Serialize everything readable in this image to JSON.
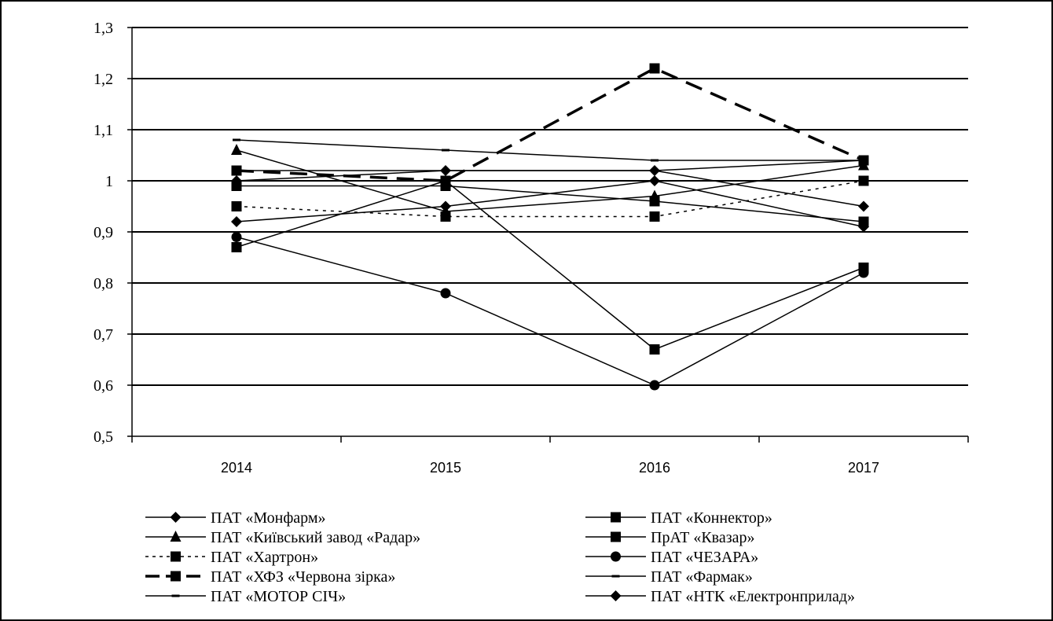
{
  "chart_data": {
    "type": "line",
    "categories": [
      "2014",
      "2015",
      "2016",
      "2017"
    ],
    "ylim": [
      0.5,
      1.3
    ],
    "yticks": [
      0.5,
      0.6,
      0.7,
      0.8,
      0.9,
      1.0,
      1.1,
      1.2,
      1.3
    ],
    "ytick_labels": [
      "0,5",
      "0,6",
      "0,7",
      "0,8",
      "0,9",
      "1",
      "1,1",
      "1,2",
      "1,3"
    ],
    "grid": true,
    "legend_position": "bottom",
    "series": [
      {
        "name": "ПАТ «Монфарм»",
        "values": [
          1.0,
          1.02,
          1.02,
          0.95
        ],
        "marker": "diamond",
        "dash": "solid",
        "width": 1.5
      },
      {
        "name": "ПАТ «Коннектор»",
        "values": [
          0.99,
          0.99,
          0.96,
          0.92
        ],
        "marker": "square",
        "dash": "solid",
        "width": 1.5
      },
      {
        "name": "ПАТ «Київський завод «Радар»",
        "values": [
          1.06,
          0.94,
          0.97,
          1.03
        ],
        "marker": "triangle",
        "dash": "solid",
        "width": 1.5
      },
      {
        "name": "ПрАТ «Квазар»",
        "values": [
          0.87,
          1.0,
          0.67,
          0.83
        ],
        "marker": "square",
        "dash": "solid",
        "width": 1.5
      },
      {
        "name": "ПАТ «Хартрон»",
        "values": [
          0.95,
          0.93,
          0.93,
          1.0
        ],
        "marker": "square",
        "dash": "dotted",
        "width": 1.5
      },
      {
        "name": "ПАТ «ЧЕЗАРА»",
        "values": [
          0.89,
          0.78,
          0.6,
          0.82
        ],
        "marker": "circle",
        "dash": "solid",
        "width": 1.5
      },
      {
        "name": "ПАТ «ХФЗ «Червона зірка»",
        "values": [
          1.02,
          1.0,
          1.22,
          1.04
        ],
        "marker": "square",
        "dash": "dashed",
        "width": 3.5
      },
      {
        "name": "ПАТ «Фармак»",
        "values": [
          1.08,
          1.06,
          1.04,
          1.04
        ],
        "marker": "dash",
        "dash": "solid",
        "width": 1.5
      },
      {
        "name": "ПАТ «МОТОР СІЧ»",
        "values": [
          1.02,
          1.02,
          1.02,
          1.04
        ],
        "marker": "dash",
        "dash": "solid",
        "width": 1.5
      },
      {
        "name": "ПАТ «НТК «Електронприлад»",
        "values": [
          0.92,
          0.95,
          1.0,
          0.91
        ],
        "marker": "diamond",
        "dash": "solid",
        "width": 1.5
      }
    ]
  }
}
